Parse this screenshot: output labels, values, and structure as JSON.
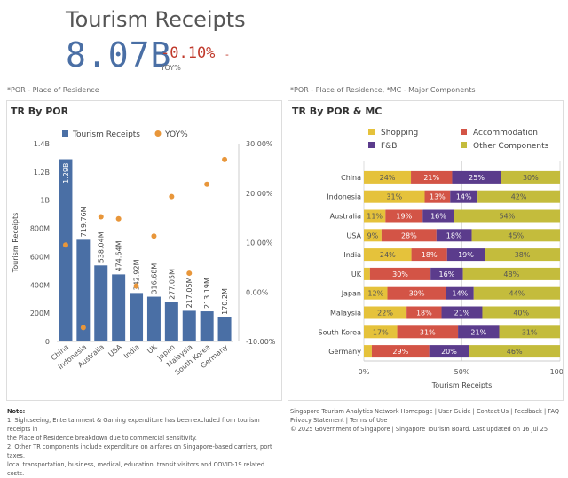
{
  "kpi": {
    "title": "Tourism Receipts",
    "value": "8.07B",
    "change": "-0.10%",
    "change_suffix": "-",
    "change_label": "YOY%"
  },
  "left_note": "*POR - Place of Residence",
  "right_note": "*POR - Place of Residence, *MC - Major Components",
  "left_panel": {
    "title": "TR By POR",
    "ylabel": "Tourism Receipts"
  },
  "right_panel": {
    "title": "TR By POR & MC",
    "xlabel": "Tourism Receipts"
  },
  "colors": {
    "bar": "#4a6fa5",
    "dot": "#e8963a",
    "shopping": "#e5c23b",
    "accommodation": "#d35446",
    "fnb": "#5b3c8c",
    "other": "#c4bc3c"
  },
  "chart_data": [
    {
      "type": "bar",
      "title": "TR By POR",
      "categories": [
        "China",
        "Indonesia",
        "Australia",
        "USA",
        "India",
        "UK",
        "Japan",
        "Malaysia",
        "South Korea",
        "Germany"
      ],
      "series": [
        {
          "name": "Tourism Receipts",
          "values": [
            1290,
            719.76,
            538.04,
            474.64,
            342.92,
            316.68,
            277.05,
            217.05,
            213.19,
            170.2
          ],
          "labels": [
            "1.29B",
            "719.76M",
            "538.04M",
            "474.64M",
            "342.92M",
            "316.68M",
            "277.05M",
            "217.05M",
            "213.19M",
            "170.2M"
          ]
        },
        {
          "name": "YOY%",
          "values": [
            9.5,
            -7.2,
            15.2,
            14.8,
            1.2,
            11.3,
            19.3,
            3.8,
            21.8,
            26.8
          ]
        }
      ],
      "ylabel": "Tourism Receipts",
      "ylim": [
        0,
        1400
      ],
      "yticks": [
        "0",
        "200M",
        "400M",
        "600M",
        "800M",
        "1B",
        "1.2B",
        "1.4B"
      ],
      "y2lim": [
        -10,
        30
      ],
      "y2ticks": [
        "-10.00%",
        "0.00%",
        "10.00%",
        "20.00%",
        "30.00%"
      ],
      "legend": "top"
    },
    {
      "type": "bar",
      "orientation": "horizontal-stacked-100",
      "title": "TR By POR & MC",
      "categories": [
        "China",
        "Indonesia",
        "Australia",
        "USA",
        "India",
        "UK",
        "Japan",
        "Malaysia",
        "South Korea",
        "Germany"
      ],
      "series": [
        {
          "name": "Shopping",
          "values": [
            24,
            31,
            11,
            9,
            24,
            3,
            12,
            22,
            17,
            4
          ],
          "labels": [
            "24%",
            "31%",
            "11%",
            "9%",
            "24%",
            "",
            "12%",
            "22%",
            "17%",
            ""
          ]
        },
        {
          "name": "Accommodation",
          "values": [
            21,
            13,
            19,
            28,
            18,
            30,
            30,
            18,
            31,
            29
          ],
          "labels": [
            "21%",
            "13%",
            "19%",
            "28%",
            "18%",
            "30%",
            "30%",
            "18%",
            "31%",
            "29%"
          ]
        },
        {
          "name": "F&B",
          "values": [
            25,
            14,
            16,
            18,
            19,
            16,
            14,
            21,
            21,
            20
          ],
          "labels": [
            "25%",
            "14%",
            "16%",
            "18%",
            "19%",
            "16%",
            "14%",
            "21%",
            "21%",
            "20%"
          ]
        },
        {
          "name": "Other Components",
          "values": [
            30,
            42,
            54,
            45,
            38,
            48,
            44,
            40,
            31,
            46
          ],
          "labels": [
            "30%",
            "42%",
            "54%",
            "45%",
            "38%",
            "48%",
            "44%",
            "40%",
            "31%",
            "46%"
          ]
        }
      ],
      "xlabel": "Tourism Receipts",
      "xticks": [
        "0%",
        "50%",
        "100%"
      ],
      "legend": "top"
    }
  ],
  "footer_left": {
    "heading": "Note:",
    "line1": "1. Sightseeing, Entertainment & Gaming expenditure has been excluded from tourism receipts in",
    "line2": "the Place of Residence breakdown due to commercial sensitivity.",
    "line3": "2. Other TR components include expenditure on airfares on Singapore-based carriers, port taxes,",
    "line4": "local transportation, business, medical, education, transit visitors and COVID-19 related costs."
  },
  "footer_right": {
    "links": [
      "Singapore Tourism Analytics Network Homepage",
      "User Guide",
      "Contact Us",
      "Feedback",
      "FAQ",
      "Privacy Statement",
      "Terms of Use"
    ],
    "sep": "|",
    "copyright": "© 2025 Government of Singapore | Singapore Tourism Board. Last updated on 16 Jul 25"
  }
}
